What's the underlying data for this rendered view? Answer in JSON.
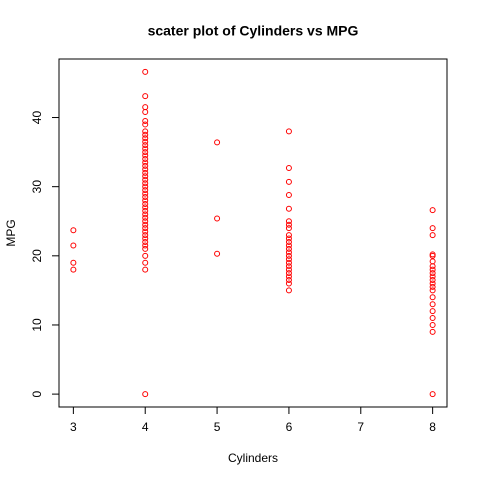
{
  "chart_data": {
    "type": "scatter",
    "title": "scater plot of Cylinders vs MPG",
    "x_label": "Cylinders",
    "y_label": "MPG",
    "color": "red",
    "xlim": [
      2.8,
      8.2
    ],
    "xticks": [
      3,
      4,
      5,
      6,
      7,
      8
    ],
    "ylim": [
      -1.864,
      48.464
    ],
    "yticks": [
      0,
      10,
      20,
      30,
      40
    ],
    "x": [
      3,
      3,
      3,
      3,
      4,
      4,
      4,
      4,
      4,
      4,
      4,
      4,
      4,
      4,
      4,
      4,
      4,
      4,
      4,
      4,
      4,
      4,
      4,
      4,
      4,
      4,
      4,
      4,
      4,
      4,
      4,
      4,
      4,
      4,
      4,
      4,
      4,
      4,
      4,
      4,
      4,
      4,
      4,
      4,
      4,
      4,
      4,
      4,
      4,
      5,
      5,
      5,
      6,
      6,
      6,
      6,
      6,
      6,
      6,
      6,
      6,
      6,
      6,
      6,
      6,
      6,
      6,
      6,
      6,
      6,
      6,
      6,
      6,
      6,
      6,
      6,
      8,
      8,
      8,
      8,
      8,
      8,
      8,
      8,
      8,
      8,
      8,
      8,
      8,
      8,
      8,
      8,
      8,
      8,
      8,
      8,
      8
    ],
    "values": [
      23.7,
      21.5,
      19,
      18,
      0,
      18,
      19,
      20,
      21,
      21.5,
      22,
      22.5,
      23,
      23.5,
      24,
      24.5,
      25,
      25.5,
      26,
      26.5,
      27,
      27.5,
      28,
      28.5,
      29,
      29.5,
      30,
      30.5,
      31,
      31.5,
      32,
      32.5,
      33,
      33.5,
      34,
      34.5,
      35,
      35.5,
      36,
      36.5,
      37,
      37.5,
      38,
      39,
      39.5,
      40.8,
      41.5,
      43.1,
      46.6,
      36.4,
      25.4,
      20.3,
      15,
      16,
      16.5,
      17,
      17.5,
      18,
      18.5,
      19,
      19.5,
      20,
      20.5,
      21,
      21.5,
      22,
      22.5,
      23,
      24,
      24.5,
      25,
      26.8,
      28.8,
      30.7,
      32.7,
      38,
      26.6,
      24,
      23,
      20.2,
      20,
      19.2,
      18.5,
      18,
      17.5,
      17,
      16.5,
      16,
      15.5,
      15,
      14,
      13,
      12,
      11,
      10,
      9,
      0
    ]
  }
}
